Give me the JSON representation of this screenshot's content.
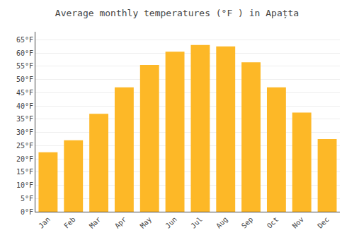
{
  "chart_data": {
    "type": "bar",
    "title": "Average monthly temperatures (°F ) in Apațta",
    "categories": [
      "Jan",
      "Feb",
      "Mar",
      "Apr",
      "May",
      "Jun",
      "Jul",
      "Aug",
      "Sep",
      "Oct",
      "Nov",
      "Dec"
    ],
    "values": [
      22.5,
      27.0,
      37.0,
      47.0,
      55.5,
      60.5,
      63.0,
      62.5,
      56.5,
      47.0,
      37.5,
      27.5
    ],
    "color": "#FDB827",
    "ylim": [
      0,
      68
    ],
    "yticks": [
      {
        "value": 0,
        "label": "0°F"
      },
      {
        "value": 5,
        "label": "5°F"
      },
      {
        "value": 10,
        "label": "10°F"
      },
      {
        "value": 15,
        "label": "15°F"
      },
      {
        "value": 20,
        "label": "20°F"
      },
      {
        "value": 25,
        "label": "25°F"
      },
      {
        "value": 30,
        "label": "30°F"
      },
      {
        "value": 35,
        "label": "35°F"
      },
      {
        "value": 40,
        "label": "40°F"
      },
      {
        "value": 45,
        "label": "45°F"
      },
      {
        "value": 50,
        "label": "50°F"
      },
      {
        "value": 55,
        "label": "55°F"
      },
      {
        "value": 60,
        "label": "60°F"
      },
      {
        "value": 65,
        "label": "65°F"
      }
    ],
    "grid": true
  }
}
